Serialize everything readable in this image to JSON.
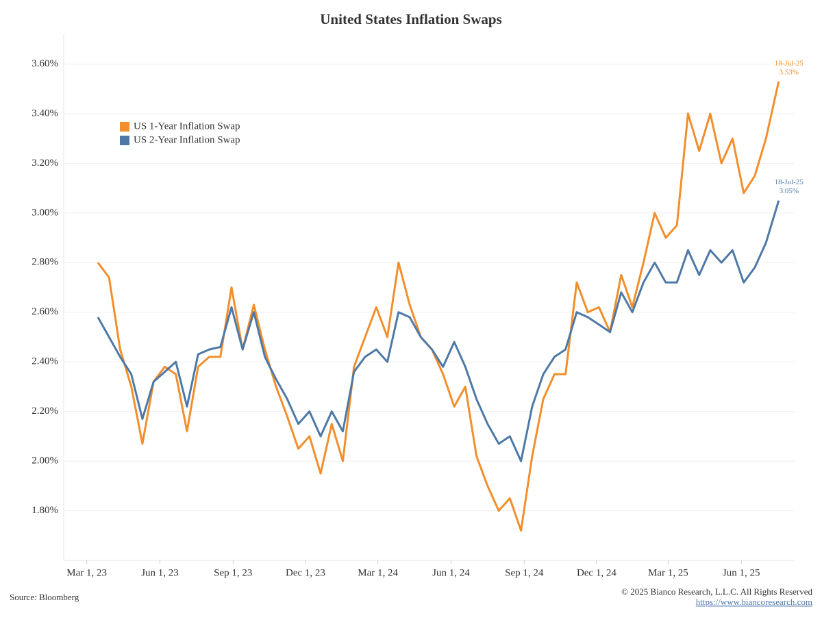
{
  "chart_data": {
    "type": "line",
    "title": "United States Inflation Swaps",
    "source": "Source: Bloomberg",
    "copyright": "© 2025 Bianco Research, L.L.C. All Rights Reserved",
    "url": "https://www.biancoresearch.com",
    "legend": "upper left",
    "grid": true,
    "x": [
      "2023-03-15",
      "2023-03-29",
      "2023-04-12",
      "2023-04-26",
      "2023-05-10",
      "2023-05-24",
      "2023-06-07",
      "2023-06-21",
      "2023-07-05",
      "2023-07-19",
      "2023-08-02",
      "2023-08-16",
      "2023-08-30",
      "2023-09-13",
      "2023-09-27",
      "2023-10-11",
      "2023-10-25",
      "2023-11-08",
      "2023-11-22",
      "2023-12-06",
      "2023-12-20",
      "2024-01-03",
      "2024-01-17",
      "2024-01-31",
      "2024-02-14",
      "2024-02-28",
      "2024-03-13",
      "2024-03-27",
      "2024-04-10",
      "2024-04-24",
      "2024-05-08",
      "2024-05-22",
      "2024-06-05",
      "2024-06-19",
      "2024-07-03",
      "2024-07-17",
      "2024-07-31",
      "2024-08-14",
      "2024-08-28",
      "2024-09-11",
      "2024-09-25",
      "2024-10-09",
      "2024-10-23",
      "2024-11-06",
      "2024-11-20",
      "2024-12-04",
      "2024-12-18",
      "2025-01-01",
      "2025-01-15",
      "2025-01-29",
      "2025-02-12",
      "2025-02-26",
      "2025-03-12",
      "2025-03-26",
      "2025-04-09",
      "2025-04-23",
      "2025-05-07",
      "2025-05-21",
      "2025-06-04",
      "2025-06-18",
      "2025-07-02",
      "2025-07-18"
    ],
    "series": [
      {
        "name": "US 1-Year Inflation Swap",
        "color": "#f28e2b",
        "last_label": "18-Jul-25",
        "last_value_label": "3.53%",
        "values": [
          2.8,
          2.74,
          2.45,
          2.3,
          2.07,
          2.32,
          2.38,
          2.35,
          2.12,
          2.38,
          2.42,
          2.42,
          2.7,
          2.45,
          2.63,
          2.45,
          2.3,
          2.18,
          2.05,
          2.1,
          1.95,
          2.15,
          2.0,
          2.38,
          2.5,
          2.62,
          2.5,
          2.8,
          2.63,
          2.5,
          2.45,
          2.35,
          2.22,
          2.3,
          2.02,
          1.9,
          1.8,
          1.85,
          1.72,
          2.02,
          2.25,
          2.35,
          2.35,
          2.72,
          2.6,
          2.62,
          2.52,
          2.75,
          2.62,
          2.8,
          3.0,
          2.9,
          2.95,
          3.4,
          3.25,
          3.4,
          3.2,
          3.3,
          3.08,
          3.15,
          3.3,
          3.53
        ]
      },
      {
        "name": "US 2-Year Inflation Swap",
        "color": "#4e79a7",
        "last_label": "18-Jul-25",
        "last_value_label": "3.05%",
        "values": [
          2.58,
          2.5,
          2.42,
          2.35,
          2.17,
          2.32,
          2.36,
          2.4,
          2.22,
          2.43,
          2.45,
          2.46,
          2.62,
          2.45,
          2.6,
          2.42,
          2.33,
          2.25,
          2.15,
          2.2,
          2.1,
          2.2,
          2.12,
          2.36,
          2.42,
          2.45,
          2.4,
          2.6,
          2.58,
          2.5,
          2.45,
          2.38,
          2.48,
          2.38,
          2.25,
          2.15,
          2.07,
          2.1,
          2.0,
          2.22,
          2.35,
          2.42,
          2.45,
          2.6,
          2.58,
          2.55,
          2.52,
          2.68,
          2.6,
          2.72,
          2.8,
          2.72,
          2.72,
          2.85,
          2.75,
          2.85,
          2.8,
          2.85,
          2.72,
          2.78,
          2.88,
          3.05
        ]
      }
    ],
    "xlim": [
      "2023-01-31",
      "2025-08-07"
    ],
    "xticks": [
      {
        "value": "2023-03-01",
        "label": "Mar 1, 23"
      },
      {
        "value": "2023-06-01",
        "label": "Jun 1, 23"
      },
      {
        "value": "2023-09-01",
        "label": "Sep 1, 23"
      },
      {
        "value": "2023-12-01",
        "label": "Dec 1, 23"
      },
      {
        "value": "2024-03-01",
        "label": "Mar 1, 24"
      },
      {
        "value": "2024-06-01",
        "label": "Jun 1, 24"
      },
      {
        "value": "2024-09-01",
        "label": "Sep 1, 24"
      },
      {
        "value": "2024-12-01",
        "label": "Dec 1, 24"
      },
      {
        "value": "2025-03-01",
        "label": "Mar 1, 25"
      },
      {
        "value": "2025-06-01",
        "label": "Jun 1, 25"
      }
    ],
    "ylim": [
      1.6,
      3.72
    ],
    "yticks": [
      {
        "value": 1.8,
        "label": "1.80%"
      },
      {
        "value": 2.0,
        "label": "2.00%"
      },
      {
        "value": 2.2,
        "label": "2.20%"
      },
      {
        "value": 2.4,
        "label": "2.40%"
      },
      {
        "value": 2.6,
        "label": "2.60%"
      },
      {
        "value": 2.8,
        "label": "2.80%"
      },
      {
        "value": 3.0,
        "label": "3.00%"
      },
      {
        "value": 3.2,
        "label": "3.20%"
      },
      {
        "value": 3.4,
        "label": "3.40%"
      },
      {
        "value": 3.6,
        "label": "3.60%"
      }
    ]
  }
}
